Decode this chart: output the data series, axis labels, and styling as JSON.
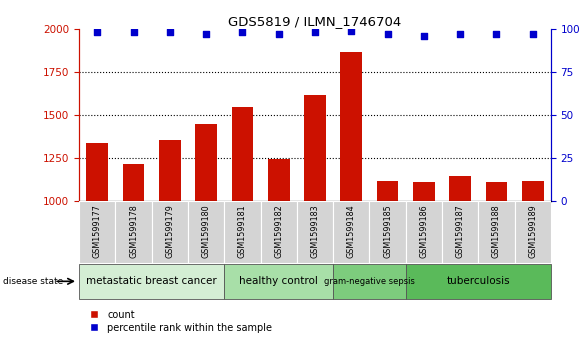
{
  "title": "GDS5819 / ILMN_1746704",
  "samples": [
    "GSM1599177",
    "GSM1599178",
    "GSM1599179",
    "GSM1599180",
    "GSM1599181",
    "GSM1599182",
    "GSM1599183",
    "GSM1599184",
    "GSM1599185",
    "GSM1599186",
    "GSM1599187",
    "GSM1599188",
    "GSM1599189"
  ],
  "counts": [
    1340,
    1220,
    1355,
    1450,
    1545,
    1245,
    1615,
    1865,
    1120,
    1110,
    1145,
    1115,
    1120
  ],
  "percentiles": [
    98,
    98,
    98,
    97,
    98,
    97,
    98,
    99,
    97,
    96,
    97,
    97,
    97
  ],
  "ylim_left": [
    1000,
    2000
  ],
  "ylim_right": [
    0,
    100
  ],
  "yticks_left": [
    1000,
    1250,
    1500,
    1750,
    2000
  ],
  "yticks_right": [
    0,
    25,
    50,
    75,
    100
  ],
  "groups": [
    {
      "label": "metastatic breast cancer",
      "start": 0,
      "end": 4,
      "color": "#d4eed4"
    },
    {
      "label": "healthy control",
      "start": 4,
      "end": 7,
      "color": "#a8dfa8"
    },
    {
      "label": "gram-negative sepsis",
      "start": 7,
      "end": 9,
      "color": "#7dcc7d"
    },
    {
      "label": "tuberculosis",
      "start": 9,
      "end": 13,
      "color": "#5aba5a"
    }
  ],
  "bar_color": "#cc1100",
  "dot_color": "#0000cc",
  "bg_color": "#ffffff",
  "tick_bg": "#d4d4d4",
  "grid_color": "#000000",
  "left_tick_color": "#cc1100",
  "right_tick_color": "#0000cc"
}
